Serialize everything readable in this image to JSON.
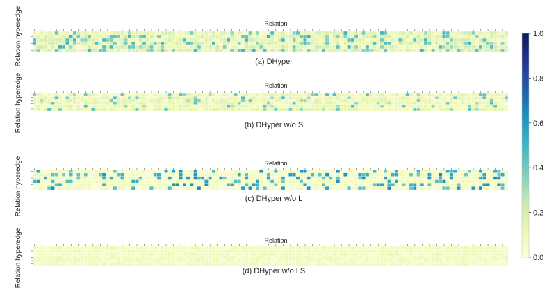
{
  "chart_data": {
    "type": "heatmap",
    "colormap": "YlGnBu",
    "colorbar": {
      "range": [
        0.0,
        1.0
      ],
      "ticks": [
        "0.0",
        "0.2",
        "0.4",
        "0.6",
        "0.8",
        "1.0"
      ]
    },
    "panels": [
      {
        "caption": "(a) DHyper",
        "xlabel": "Relation",
        "ylabel": "Relation hyperedge",
        "rows": 6,
        "cols": 130,
        "mean": 0.18,
        "hi_prob": 0.14,
        "hi_value": 0.42
      },
      {
        "caption": "(b) DHyper w/o S",
        "xlabel": "Relation",
        "ylabel": "Relation hyperedge",
        "rows": 6,
        "cols": 130,
        "mean": 0.14,
        "hi_prob": 0.11,
        "hi_value": 0.38
      },
      {
        "caption": "(c) DHyper w/o L",
        "xlabel": "Relation",
        "ylabel": "Relation hyperedge",
        "rows": 6,
        "cols": 130,
        "mean": 0.09,
        "hi_prob": 0.2,
        "hi_value": 0.52
      },
      {
        "caption": "(d) DHyper w/o LS",
        "xlabel": "Relation",
        "ylabel": "Relation hyperedge",
        "rows": 6,
        "cols": 130,
        "mean": 0.1,
        "hi_prob": 0.0,
        "hi_value": 0.2
      }
    ]
  }
}
